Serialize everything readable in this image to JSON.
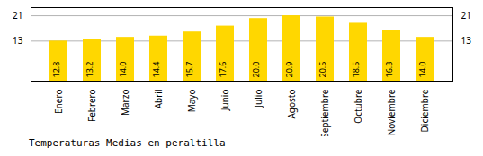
{
  "chart_data": {
    "type": "bar",
    "title": "Temperaturas Medias en peraltilla",
    "categories": [
      "Enero",
      "Febrero",
      "Marzo",
      "Abril",
      "Mayo",
      "Junio",
      "Julio",
      "Agosto",
      "Septiembre",
      "Octubre",
      "Noviembre",
      "Diciembre"
    ],
    "values": [
      12.8,
      13.2,
      14.0,
      14.4,
      15.7,
      17.6,
      20.0,
      20.9,
      20.5,
      18.5,
      16.3,
      14.0
    ],
    "value_labels": [
      "12.8",
      "13.2",
      "14.0",
      "14.4",
      "15.7",
      "17.6",
      "20.0",
      "20.9",
      "20.5",
      "18.5",
      "16.3",
      "14.0"
    ],
    "color": "#FFD700",
    "ylim": [
      0.0,
      23.5
    ],
    "yticks": [
      12.8,
      20.9
    ],
    "grid": true,
    "data_labels": true
  }
}
